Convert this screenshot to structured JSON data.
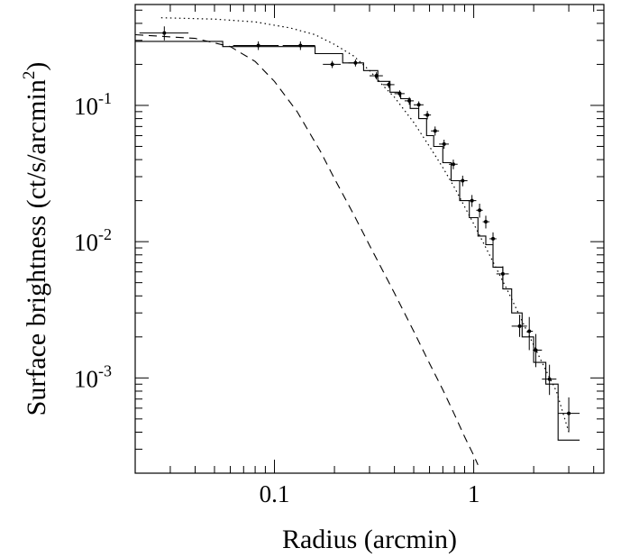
{
  "chart_data": {
    "type": "line",
    "title": "",
    "xlabel": "Radius (arcmin)",
    "ylabel": "Surface brightness (ct/s/arcmin",
    "ylabel_superscript": "2",
    "ylabel_close": ")",
    "xscale": "log",
    "yscale": "log",
    "xlim": [
      0.02,
      4.5
    ],
    "ylim": [
      0.0002,
      0.55
    ],
    "grid": false,
    "legend": "none",
    "x_tick_labels": [
      {
        "value": 0.1,
        "label": "0.1"
      },
      {
        "value": 1,
        "label": "1"
      }
    ],
    "y_tick_labels": [
      {
        "value": 0.1,
        "base": "10",
        "exponent": "-1"
      },
      {
        "value": 0.01,
        "base": "10",
        "exponent": "-2"
      },
      {
        "value": 0.001,
        "base": "10",
        "exponent": "-3"
      }
    ],
    "series": [
      {
        "style": "data-with-errors",
        "points": [
          {
            "x": 0.028,
            "y": 0.34,
            "yerr": [
              0.3,
              0.38
            ],
            "xerr": [
              0.021,
              0.037
            ]
          },
          {
            "x": 0.083,
            "y": 0.275,
            "yerr": [
              0.255,
              0.295
            ],
            "xerr": [
              0.062,
              0.105
            ]
          },
          {
            "x": 0.135,
            "y": 0.275,
            "yerr": [
              0.255,
              0.295
            ],
            "xerr": [
              0.11,
              0.16
            ]
          },
          {
            "x": 0.195,
            "y": 0.2,
            "yerr": [
              0.188,
              0.212
            ],
            "xerr": [
              0.175,
              0.215
            ]
          },
          {
            "x": 0.255,
            "y": 0.205,
            "yerr": [
              0.193,
              0.217
            ],
            "xerr": [
              0.235,
              0.275
            ]
          },
          {
            "x": 0.325,
            "y": 0.165,
            "yerr": [
              0.155,
              0.175
            ],
            "xerr": [
              0.3,
              0.35
            ]
          },
          {
            "x": 0.375,
            "y": 0.142,
            "yerr": [
              0.134,
              0.15
            ],
            "xerr": [
              0.35,
              0.4
            ]
          },
          {
            "x": 0.425,
            "y": 0.122,
            "yerr": [
              0.115,
              0.129
            ],
            "xerr": [
              0.4,
              0.45
            ]
          },
          {
            "x": 0.475,
            "y": 0.108,
            "yerr": [
              0.101,
              0.115
            ],
            "xerr": [
              0.45,
              0.5
            ]
          },
          {
            "x": 0.53,
            "y": 0.101,
            "yerr": [
              0.095,
              0.107
            ],
            "xerr": [
              0.5,
              0.56
            ]
          },
          {
            "x": 0.585,
            "y": 0.085,
            "yerr": [
              0.079,
              0.091
            ],
            "xerr": [
              0.56,
              0.61
            ]
          },
          {
            "x": 0.64,
            "y": 0.065,
            "yerr": [
              0.06,
              0.07
            ],
            "xerr": [
              0.61,
              0.67
            ]
          },
          {
            "x": 0.71,
            "y": 0.052,
            "yerr": [
              0.048,
              0.056
            ],
            "xerr": [
              0.67,
              0.75
            ]
          },
          {
            "x": 0.79,
            "y": 0.037,
            "yerr": [
              0.034,
              0.04
            ],
            "xerr": [
              0.75,
              0.83
            ]
          },
          {
            "x": 0.88,
            "y": 0.028,
            "yerr": [
              0.0255,
              0.0305
            ],
            "xerr": [
              0.83,
              0.93
            ]
          },
          {
            "x": 0.98,
            "y": 0.02,
            "yerr": [
              0.018,
              0.022
            ],
            "xerr": [
              0.93,
              1.03
            ]
          },
          {
            "x": 1.07,
            "y": 0.017,
            "yerr": [
              0.015,
              0.019
            ],
            "xerr": [
              1.03,
              1.11
            ]
          },
          {
            "x": 1.15,
            "y": 0.014,
            "yerr": [
              0.0125,
              0.0155
            ],
            "xerr": [
              1.11,
              1.2
            ]
          },
          {
            "x": 1.25,
            "y": 0.0105,
            "yerr": [
              0.0093,
              0.0117
            ],
            "xerr": [
              1.2,
              1.3
            ]
          },
          {
            "x": 1.4,
            "y": 0.0058,
            "yerr": [
              0.005,
              0.0066
            ],
            "xerr": [
              1.3,
              1.5
            ]
          },
          {
            "x": 1.7,
            "y": 0.0024,
            "yerr": [
              0.002,
              0.0029
            ],
            "xerr": [
              1.55,
              1.85
            ]
          },
          {
            "x": 1.9,
            "y": 0.0022,
            "yerr": [
              0.0016,
              0.0028
            ],
            "xerr": [
              1.85,
              1.98
            ]
          },
          {
            "x": 2.05,
            "y": 0.0016,
            "yerr": [
              0.0012,
              0.0021
            ],
            "xerr": [
              1.98,
              2.2
            ]
          },
          {
            "x": 2.4,
            "y": 0.00098,
            "yerr": [
              0.00075,
              0.00125
            ],
            "xerr": [
              2.2,
              2.6
            ]
          },
          {
            "x": 3.0,
            "y": 0.00055,
            "yerr": [
              0.0004,
              0.00072
            ],
            "xerr": [
              2.65,
              3.4
            ]
          }
        ]
      },
      {
        "style": "solid-step-model",
        "x": [
          0.02,
          0.055,
          0.055,
          0.16,
          0.16,
          0.22,
          0.22,
          0.28,
          0.28,
          0.33,
          0.33,
          0.38,
          0.38,
          0.43,
          0.43,
          0.48,
          0.48,
          0.53,
          0.53,
          0.58,
          0.58,
          0.63,
          0.63,
          0.7,
          0.7,
          0.77,
          0.77,
          0.85,
          0.85,
          0.95,
          0.95,
          1.05,
          1.05,
          1.15,
          1.15,
          1.25,
          1.25,
          1.4,
          1.4,
          1.55,
          1.55,
          1.75,
          1.75,
          2.0,
          2.0,
          2.3,
          2.3,
          2.65,
          2.65,
          3.4
        ],
        "y": [
          0.295,
          0.295,
          0.27,
          0.27,
          0.24,
          0.24,
          0.205,
          0.205,
          0.18,
          0.18,
          0.15,
          0.15,
          0.125,
          0.125,
          0.112,
          0.112,
          0.095,
          0.095,
          0.08,
          0.08,
          0.06,
          0.06,
          0.05,
          0.05,
          0.038,
          0.038,
          0.028,
          0.028,
          0.02,
          0.02,
          0.015,
          0.015,
          0.011,
          0.011,
          0.0095,
          0.0095,
          0.0065,
          0.0065,
          0.0045,
          0.0045,
          0.003,
          0.003,
          0.002,
          0.002,
          0.0013,
          0.0013,
          0.0009,
          0.0009,
          0.00035,
          0.00035
        ]
      },
      {
        "style": "dashed-model",
        "x": [
          0.02,
          0.04,
          0.06,
          0.08,
          0.1,
          0.13,
          0.17,
          0.2,
          0.25,
          0.3,
          0.4,
          0.5,
          0.6,
          0.7,
          0.8,
          0.9,
          1.0,
          1.05
        ],
        "y": [
          0.33,
          0.31,
          0.27,
          0.21,
          0.15,
          0.09,
          0.046,
          0.029,
          0.0158,
          0.0094,
          0.0042,
          0.0022,
          0.00128,
          0.00082,
          0.00054,
          0.00037,
          0.00027,
          0.00023
        ]
      },
      {
        "style": "dotted-model",
        "x": [
          0.027,
          0.05,
          0.08,
          0.12,
          0.16,
          0.2,
          0.25,
          0.3,
          0.35,
          0.4,
          0.5,
          0.6,
          0.7,
          0.8,
          1.0,
          1.2,
          1.5,
          1.8,
          2.2,
          2.6,
          3.0
        ],
        "y": [
          0.44,
          0.43,
          0.41,
          0.37,
          0.33,
          0.28,
          0.23,
          0.18,
          0.14,
          0.115,
          0.075,
          0.05,
          0.035,
          0.025,
          0.0135,
          0.008,
          0.0042,
          0.0024,
          0.0013,
          0.0008,
          0.0004
        ]
      }
    ]
  }
}
